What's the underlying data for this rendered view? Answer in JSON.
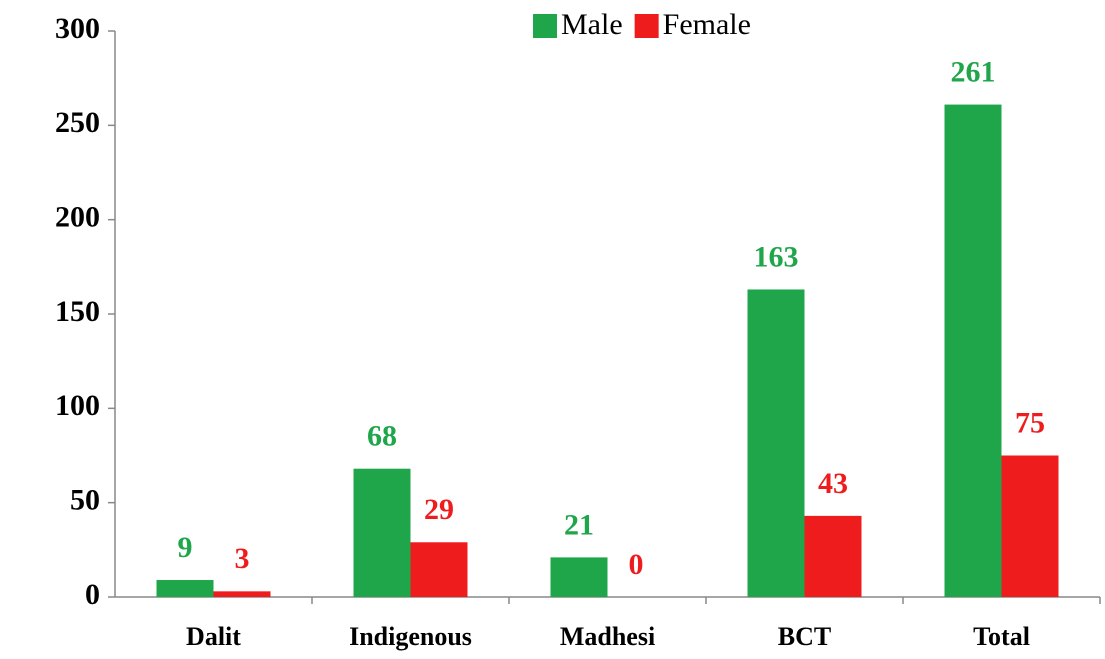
{
  "chart_data": {
    "type": "bar",
    "categories": [
      "Dalit",
      "Indigenous",
      "Madhesi",
      "BCT",
      "Total"
    ],
    "series": [
      {
        "name": "Male",
        "color": "#1fa64b",
        "values": [
          9,
          68,
          21,
          163,
          261
        ]
      },
      {
        "name": "Female",
        "color": "#ee1c1c",
        "values": [
          3,
          29,
          0,
          43,
          75
        ]
      }
    ],
    "ylim": [
      0,
      300
    ],
    "yticks": [
      0,
      50,
      100,
      150,
      200,
      250,
      300
    ],
    "legend": "top"
  }
}
